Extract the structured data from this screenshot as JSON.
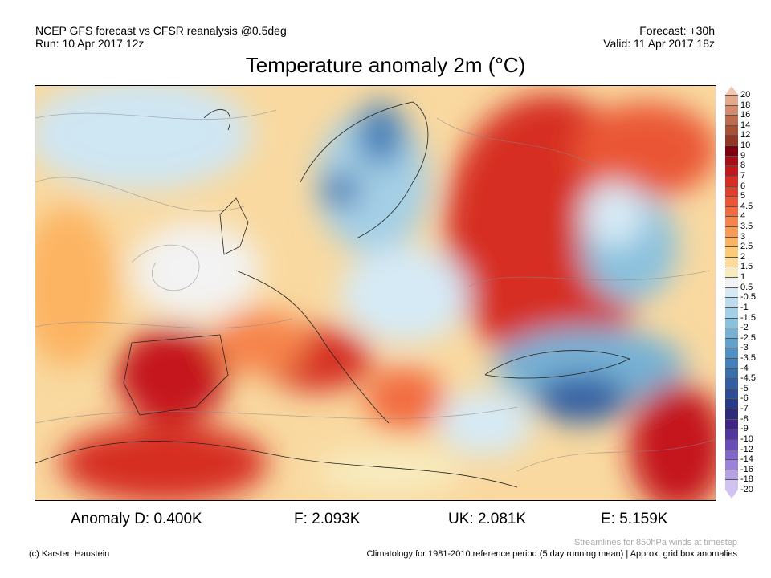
{
  "header": {
    "line1": "NCEP GFS forecast vs CFSR reanalysis @0.5deg",
    "run": "Run: 10 Apr 2017 12z",
    "forecast": "Forecast: +30h",
    "valid": "Valid: 11 Apr 2017 18z"
  },
  "title": "Temperature anomaly 2m (°C)",
  "colorbar": {
    "labels": [
      "20",
      "18",
      "16",
      "14",
      "12",
      "10",
      "9",
      "8",
      "7",
      "6",
      "5",
      "4.5",
      "4",
      "3.5",
      "3",
      "2.5",
      "2",
      "1.5",
      "1",
      "0.5",
      "-0.5",
      "-1",
      "-1.5",
      "-2",
      "-2.5",
      "-3",
      "-3.5",
      "-4",
      "-4.5",
      "-5",
      "-6",
      "-7",
      "-8",
      "-9",
      "-10",
      "-12",
      "-14",
      "-16",
      "-18",
      "-20"
    ],
    "colors": [
      "#f2c7b0",
      "#e5a98b",
      "#d48a6c",
      "#bf6c4e",
      "#a95137",
      "#933523",
      "#7d0010",
      "#a50f15",
      "#c4161c",
      "#d62d24",
      "#e0402e",
      "#ea5636",
      "#f26c41",
      "#f6844c",
      "#f99b55",
      "#fcb462",
      "#fdca78",
      "#fedb96",
      "#f8ecbf",
      "#f3f3f3",
      "#d6eaf6",
      "#bcdcee",
      "#a4cfe6",
      "#8ac1dd",
      "#76b1d4",
      "#63a1cb",
      "#5190c2",
      "#4480b9",
      "#3a6fae",
      "#335ea3",
      "#2c4c96",
      "#283a88",
      "#2d2a7c",
      "#3f2385",
      "#5234a0",
      "#6a4bb8",
      "#8366cb",
      "#9c82da",
      "#b7a2e6",
      "#d0c3f0"
    ]
  },
  "anomalies": {
    "D": "Anomaly D: 0.400K",
    "F": "F: 2.093K",
    "UK": "UK: 2.081K",
    "E": "E: 5.159K"
  },
  "footer": {
    "copyright": "(c) Karsten Haustein",
    "streamlines": "Streamlines for 850hPa winds at timestep",
    "climatology": "Climatology for 1981-2010 reference period (5 day running mean) | Approx. grid box anomalies"
  }
}
